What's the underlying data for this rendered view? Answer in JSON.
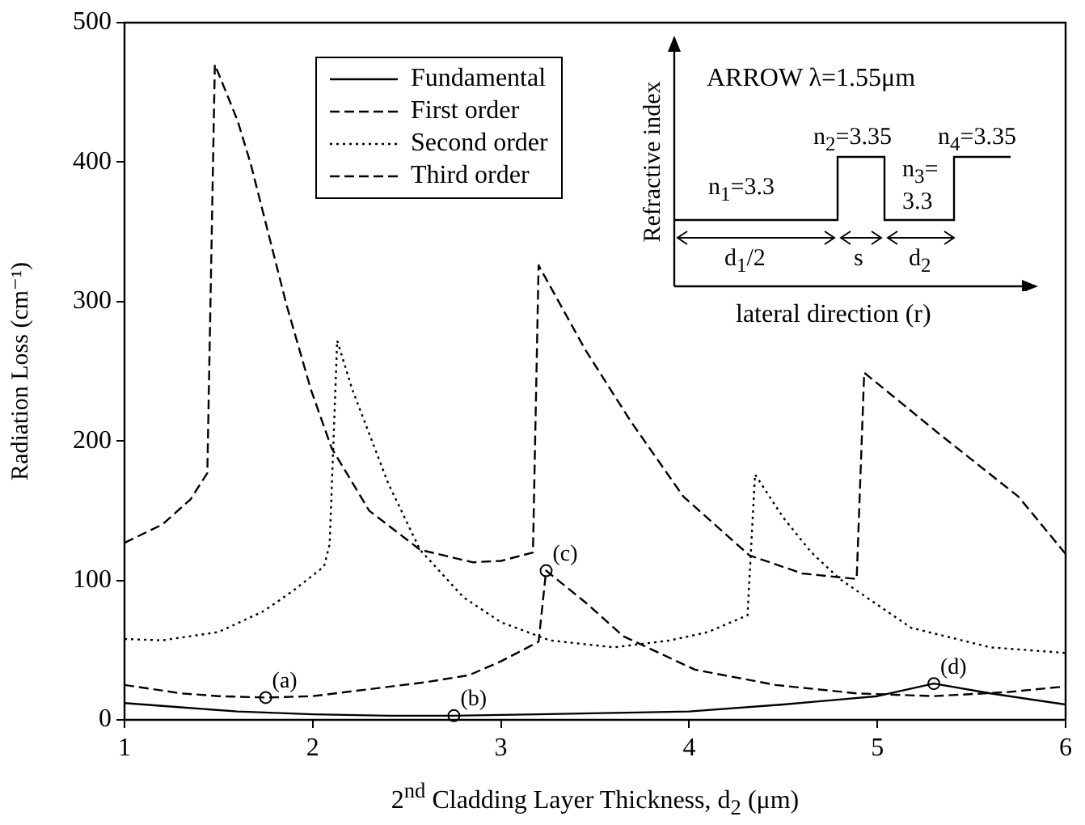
{
  "chart_data": {
    "type": "line",
    "xlabel": "2$^{nd}$ Cladding Layer Thickness, d$_{2}$ (μm)",
    "ylabel": "Radiation Loss (cm⁻¹)",
    "xlim": [
      1,
      6
    ],
    "xticks": [
      1,
      2,
      3,
      4,
      5,
      6
    ],
    "ylim": [
      0,
      500
    ],
    "yticks": [
      0,
      100,
      200,
      300,
      400,
      500
    ],
    "grid": false,
    "legend": "top left",
    "series": [
      {
        "name": "Fundamental",
        "color": "#000000",
        "line_style": "solid",
        "x": [
          1,
          1.3,
          1.6,
          2,
          2.4,
          2.75,
          3.2,
          3.6,
          4,
          4.5,
          5,
          5.3,
          5.6,
          6
        ],
        "values": [
          12,
          9,
          6,
          4,
          3,
          3,
          4,
          5,
          6,
          11,
          17,
          26,
          19,
          11
        ]
      },
      {
        "name": "First order",
        "color": "#000000",
        "line_style": "dashed",
        "x": [
          1,
          1.3,
          1.5,
          1.75,
          2,
          2.3,
          2.6,
          2.83,
          3,
          3.2,
          3.24,
          3.46,
          3.65,
          4.03,
          4.46,
          4.89,
          5.3,
          5.7,
          6
        ],
        "values": [
          25,
          19,
          17,
          16,
          17,
          22,
          27,
          32,
          42,
          56,
          107,
          83,
          60,
          36,
          25,
          19,
          17,
          20,
          24
        ]
      },
      {
        "name": "Second order",
        "color": "#000000",
        "line_style": "dotted",
        "x": [
          1,
          1.2,
          1.5,
          1.74,
          1.9,
          2.06,
          2.09,
          2.13,
          2.21,
          2.4,
          2.57,
          2.8,
          3,
          3.26,
          3.6,
          3.9,
          4.1,
          4.31,
          4.35,
          4.5,
          4.65,
          4.8,
          5.18,
          5.6,
          6
        ],
        "values": [
          58,
          57,
          63,
          78,
          93,
          110,
          126,
          272,
          237,
          170,
          122,
          88,
          70,
          57,
          52,
          57,
          63,
          75,
          176,
          145,
          120,
          101,
          66,
          52,
          48
        ]
      },
      {
        "name": "Third order",
        "color": "#000000",
        "line_style": "dashed",
        "x": [
          1,
          1.2,
          1.35,
          1.44,
          1.48,
          1.6,
          1.67,
          1.86,
          1.99,
          2.1,
          2.3,
          2.57,
          2.85,
          3,
          3.17,
          3.2,
          3.45,
          3.69,
          3.97,
          4.32,
          4.6,
          4.89,
          4.93,
          5.32,
          5.75,
          6
        ],
        "values": [
          127,
          140,
          158,
          177,
          470,
          430,
          399,
          298,
          237,
          195,
          150,
          122,
          113,
          114,
          120,
          326,
          265,
          214,
          160,
          118,
          105,
          101,
          249,
          206,
          160,
          119
        ]
      }
    ],
    "annotations": [
      {
        "text": "(a)",
        "x": 1.75,
        "y": 16
      },
      {
        "text": "(b)",
        "x": 2.75,
        "y": 3
      },
      {
        "text": "(c)",
        "x": 3.24,
        "y": 107
      },
      {
        "text": "(d)",
        "x": 5.3,
        "y": 26
      },
      "ARROW  λ=1.55μm",
      "Refractive index",
      "lateral direction (r)",
      "n$_{1}$=3.3",
      "n$_{2}$=3.35",
      "n$_{3}$= 3.3",
      "n$_{4}$=3.35",
      "d$_{1}$/2",
      "s",
      "d$_{2}$"
    ]
  }
}
